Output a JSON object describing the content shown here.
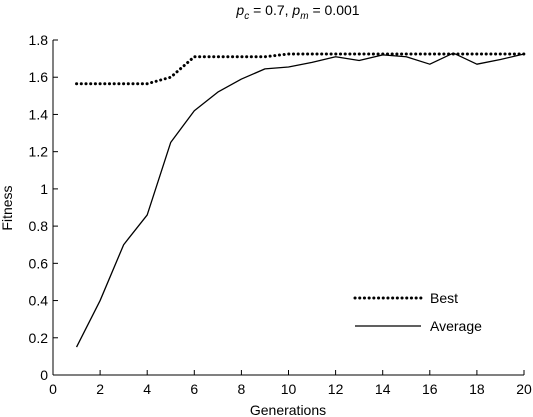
{
  "chart_data": {
    "type": "line",
    "title_parts": [
      {
        "t": "p",
        "italic": true
      },
      {
        "t": "c",
        "italic": true,
        "sub": true
      },
      {
        "t": " = 0.7,  "
      },
      {
        "t": "p",
        "italic": true
      },
      {
        "t": "m",
        "italic": true,
        "sub": true
      },
      {
        "t": " = 0.001"
      }
    ],
    "xlabel": "Generations",
    "ylabel": "Fitness",
    "xlim": [
      0,
      20
    ],
    "ylim": [
      0,
      1.8
    ],
    "xticks": [
      0,
      2,
      4,
      6,
      8,
      10,
      12,
      14,
      16,
      18,
      20
    ],
    "yticks": [
      0,
      0.2,
      0.4,
      0.6,
      0.8,
      1,
      1.2,
      1.4,
      1.6,
      1.8
    ],
    "ytick_labels": [
      "0",
      "0.2",
      "0.4",
      "0.6",
      "0.8",
      "1",
      "1.2",
      "1.4",
      "1.6",
      "1.8"
    ],
    "grid": false,
    "legend_position": "lower-right",
    "x": [
      1,
      2,
      3,
      4,
      5,
      6,
      7,
      8,
      9,
      10,
      11,
      12,
      13,
      14,
      15,
      16,
      17,
      18,
      19,
      20
    ],
    "series": [
      {
        "name": "Best",
        "style": "dotted",
        "values": [
          1.565,
          1.565,
          1.565,
          1.565,
          1.6,
          1.71,
          1.71,
          1.71,
          1.71,
          1.725,
          1.725,
          1.725,
          1.725,
          1.725,
          1.725,
          1.725,
          1.725,
          1.725,
          1.725,
          1.725
        ]
      },
      {
        "name": "Average",
        "style": "solid",
        "values": [
          0.15,
          0.4,
          0.7,
          0.86,
          1.25,
          1.42,
          1.52,
          1.59,
          1.645,
          1.655,
          1.68,
          1.71,
          1.69,
          1.72,
          1.71,
          1.67,
          1.73,
          1.67,
          1.695,
          1.725
        ]
      }
    ]
  }
}
